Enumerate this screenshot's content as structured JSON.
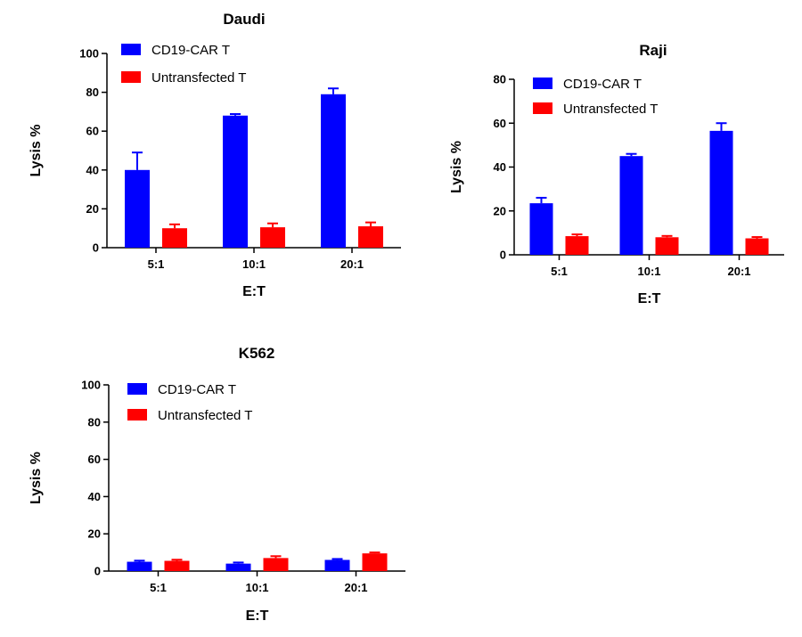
{
  "chart_data": [
    {
      "type": "bar",
      "title": "Daudi",
      "xlabel": "E:T",
      "ylabel": "Lysis %",
      "ylim": [
        0,
        100
      ],
      "yticks": [
        0,
        20,
        40,
        60,
        80,
        100
      ],
      "categories": [
        "5:1",
        "10:1",
        "20:1"
      ],
      "legend_position": "top-left",
      "series": [
        {
          "name": "CD19-CAR T",
          "color": "#0000FF",
          "values": [
            40,
            68,
            79
          ],
          "errors": [
            9,
            0.8,
            3
          ]
        },
        {
          "name": "Untransfected T",
          "color": "#FF0000",
          "values": [
            10,
            10.5,
            11
          ],
          "errors": [
            2,
            2,
            2
          ]
        }
      ]
    },
    {
      "type": "bar",
      "title": "Raji",
      "xlabel": "E:T",
      "ylabel": "Lysis %",
      "ylim": [
        0,
        80
      ],
      "yticks": [
        0,
        20,
        40,
        60,
        80
      ],
      "categories": [
        "5:1",
        "10:1",
        "20:1"
      ],
      "legend_position": "top-left",
      "series": [
        {
          "name": "CD19-CAR T",
          "color": "#0000FF",
          "values": [
            23.5,
            45,
            56.5
          ],
          "errors": [
            2.5,
            1,
            3.5
          ]
        },
        {
          "name": "Untransfected T",
          "color": "#FF0000",
          "values": [
            8.5,
            8,
            7.5
          ],
          "errors": [
            0.8,
            0.6,
            0.6
          ]
        }
      ]
    },
    {
      "type": "bar",
      "title": "K562",
      "xlabel": "E:T",
      "ylabel": "Lysis %",
      "ylim": [
        0,
        100
      ],
      "yticks": [
        0,
        20,
        40,
        60,
        80,
        100
      ],
      "categories": [
        "5:1",
        "10:1",
        "20:1"
      ],
      "legend_position": "top-left",
      "series": [
        {
          "name": "CD19-CAR T",
          "color": "#0000FF",
          "values": [
            5,
            4,
            6
          ],
          "errors": [
            0.6,
            0.6,
            0.5
          ]
        },
        {
          "name": "Untransfected T",
          "color": "#FF0000",
          "values": [
            5.5,
            7,
            9.5
          ],
          "errors": [
            0.6,
            1,
            0.5
          ]
        }
      ]
    }
  ]
}
